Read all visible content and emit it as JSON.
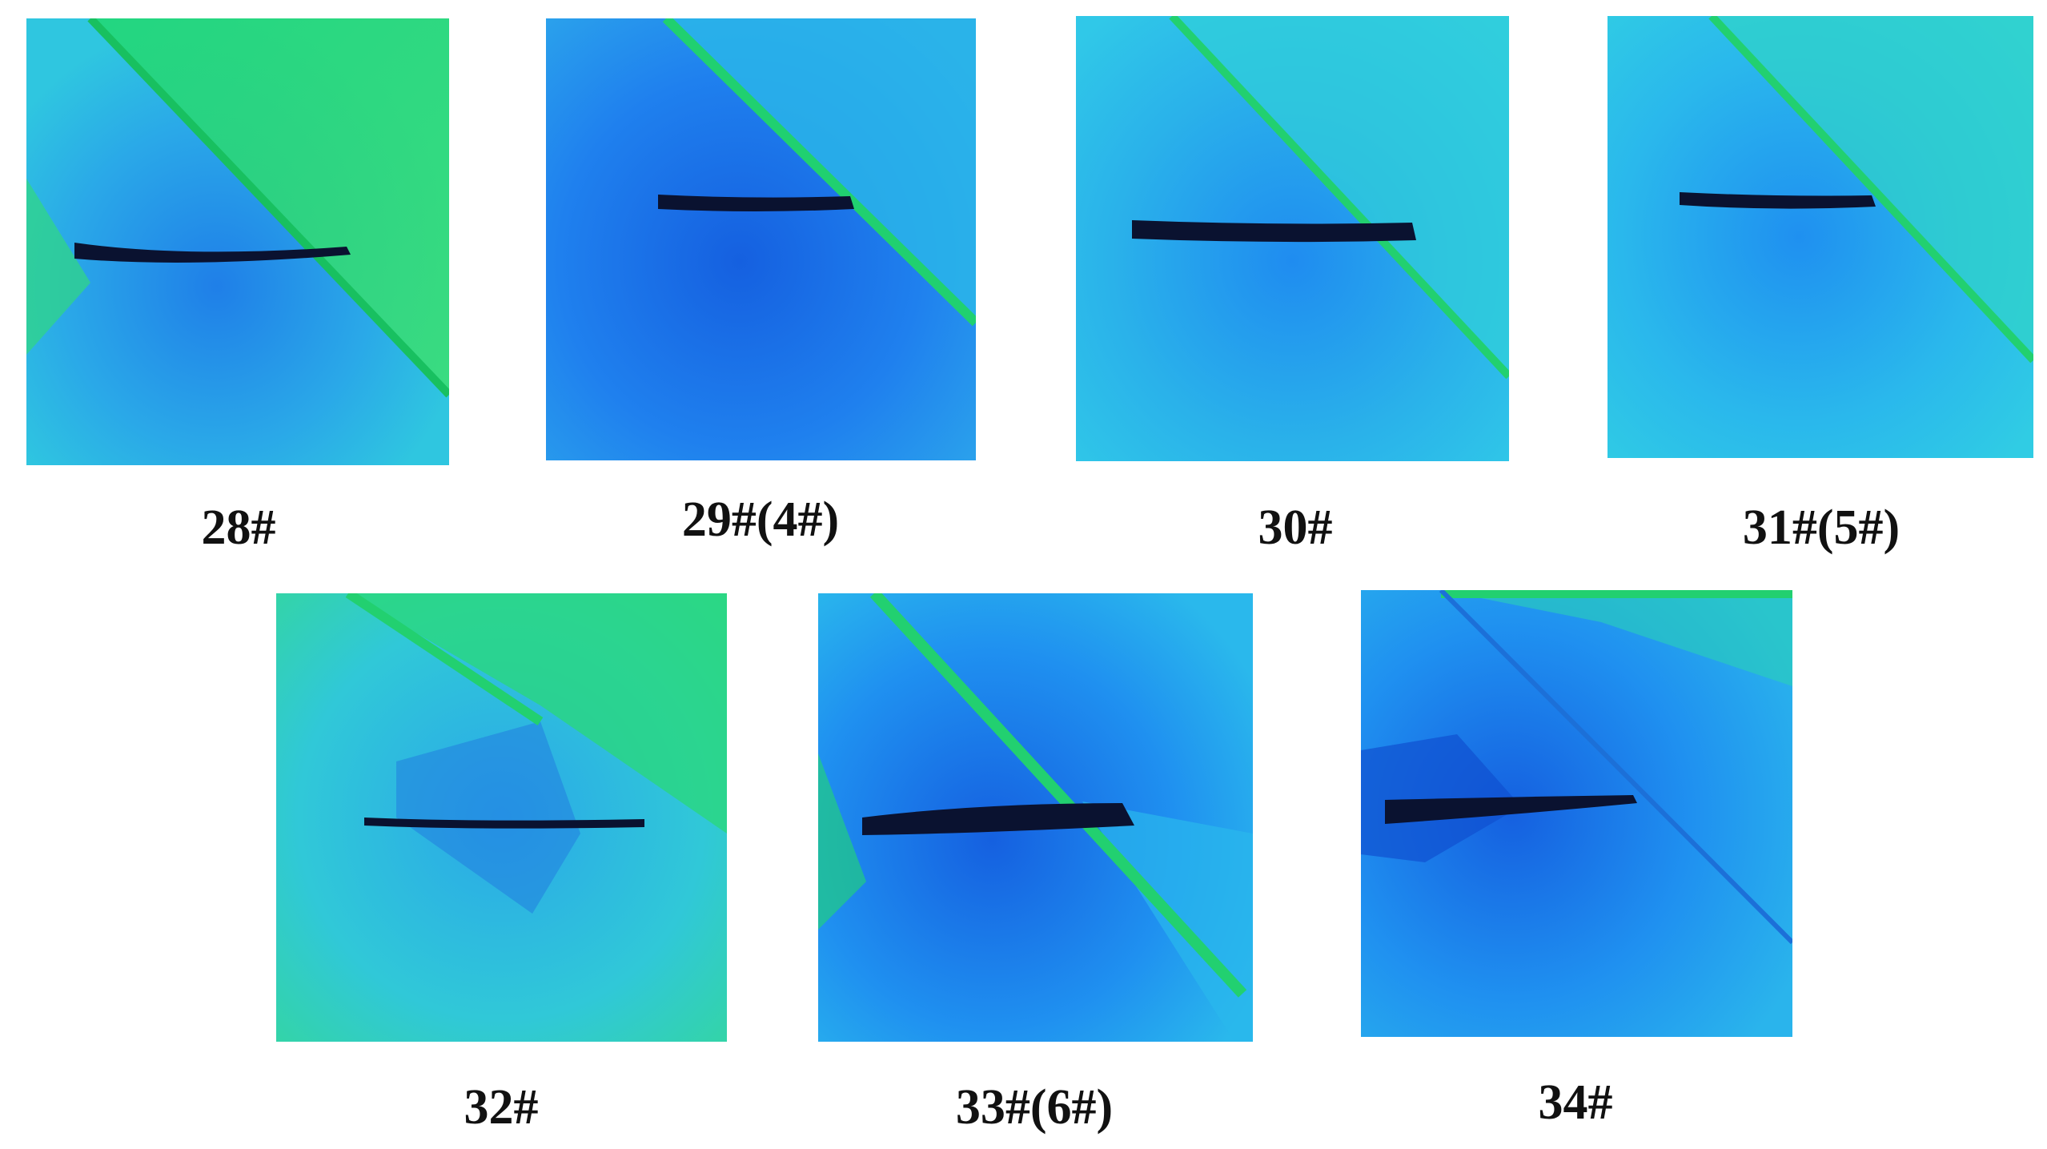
{
  "panels": [
    {
      "label": "28#",
      "theme": "green"
    },
    {
      "label": "29#(4#)",
      "theme": "blue"
    },
    {
      "label": "30#",
      "theme": "cyan"
    },
    {
      "label": "31#(5#)",
      "theme": "cyan"
    },
    {
      "label": "32#",
      "theme": "green"
    },
    {
      "label": "33#(6#)",
      "theme": "blue"
    },
    {
      "label": "34#",
      "theme": "blue"
    }
  ],
  "colors": {
    "green": "#22d86a",
    "cyan": "#2fc6e6",
    "blue": "#1f8cf0",
    "deep_blue": "#1560e0",
    "crack": "#0a1230",
    "background": "#ffffff"
  }
}
